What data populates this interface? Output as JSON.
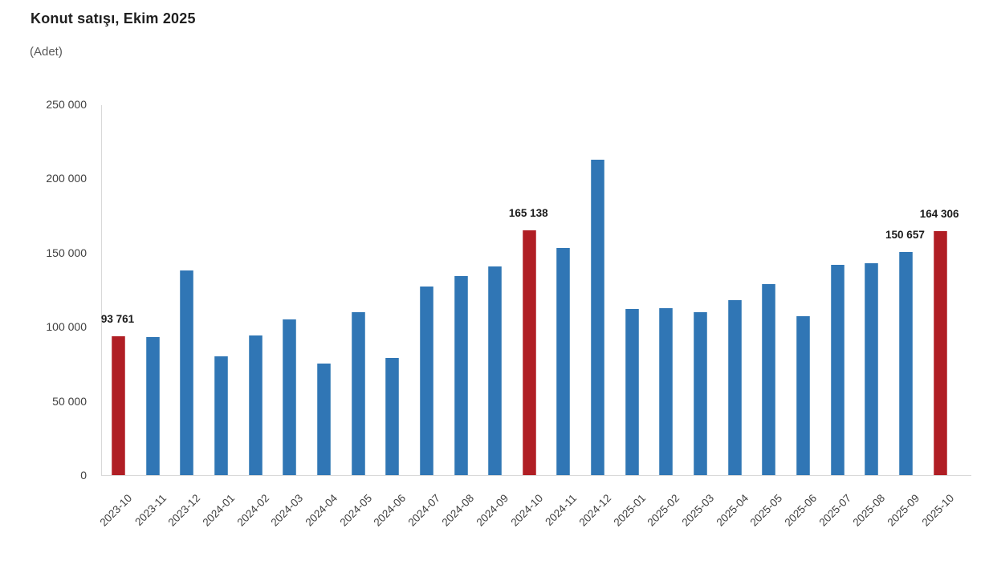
{
  "header": {
    "title": "Konut satışı, Ekim 2025",
    "subtitle": "(Adet)"
  },
  "chart_data": {
    "type": "bar",
    "title": "Konut satışı, Ekim 2025",
    "subtitle_unit": "(Adet)",
    "categories": [
      "2023-10",
      "2023-11",
      "2023-12",
      "2024-01",
      "2024-02",
      "2024-03",
      "2024-04",
      "2024-05",
      "2024-06",
      "2024-07",
      "2024-08",
      "2024-09",
      "2024-10",
      "2024-11",
      "2024-12",
      "2025-01",
      "2025-02",
      "2025-03",
      "2025-04",
      "2025-05",
      "2025-06",
      "2025-07",
      "2025-08",
      "2025-09",
      "2025-10"
    ],
    "values": [
      93761,
      93000,
      138000,
      80000,
      94000,
      105000,
      75000,
      110000,
      79000,
      127000,
      134000,
      140500,
      165138,
      153000,
      212500,
      112000,
      112500,
      110000,
      118000,
      129000,
      107000,
      142000,
      143000,
      150657,
      164306
    ],
    "highlighted_categories": [
      "2023-10",
      "2024-10",
      "2025-10"
    ],
    "data_labels": {
      "2023-10": "93 761",
      "2024-10": "165 138",
      "2025-09": "150 657",
      "2025-10": "164 306"
    },
    "y_axis": {
      "min": 0,
      "max": 250000,
      "tick_step": 50000,
      "tick_labels": [
        "0",
        "50 000",
        "100 000",
        "150 000",
        "200 000",
        "250 000"
      ],
      "gridlines": false
    },
    "x_axis": {
      "tick_rotation_deg": -45
    },
    "legend_position": "none",
    "colors": {
      "bar_default": "#3076b5",
      "bar_default_edge": "#5e96c4",
      "bar_highlight": "#b01e24",
      "bar_highlight_edge": "#c4565b",
      "axis_line": "#d9d9d9",
      "tick_text": "#404040",
      "value_label_text": "#1a1a1a"
    }
  }
}
